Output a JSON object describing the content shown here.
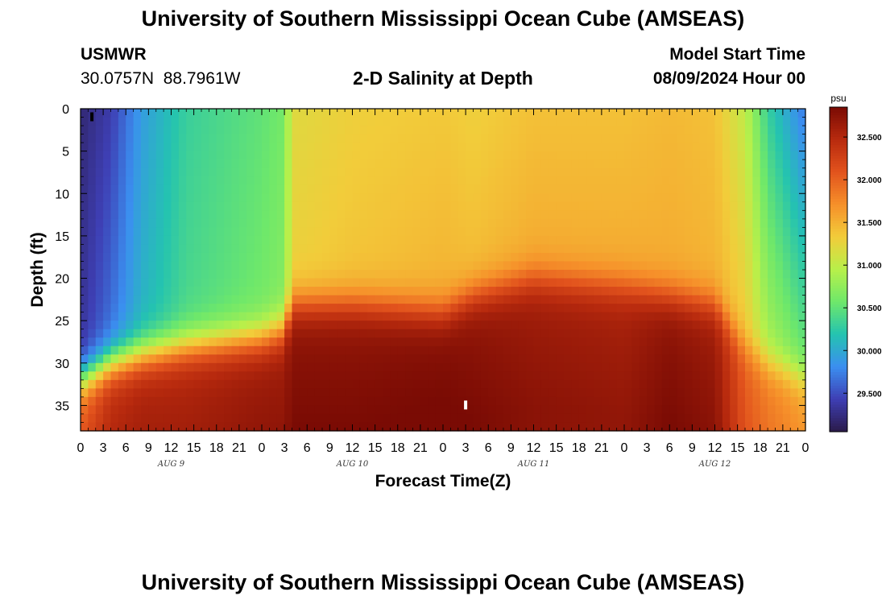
{
  "header": {
    "title": "University of Southern Mississippi Ocean Cube (AMSEAS)",
    "station_name": "USMWR",
    "station_coords": "30.0757N  88.7961W",
    "plot_title": "2-D Salinity at Depth",
    "model_start_label": "Model Start Time",
    "model_start_value": "08/09/2024 Hour 00"
  },
  "footer": {
    "title": "University of Southern Mississippi Ocean Cube (AMSEAS)"
  },
  "chart_data": {
    "type": "heatmap",
    "title": "2-D Salinity at Depth",
    "xlabel": "Forecast Time(Z)",
    "ylabel": "Depth (ft)",
    "x_range_hours": [
      0,
      96
    ],
    "x_tick_step_hours": 3,
    "x_tick_labels": [
      "0",
      "3",
      "6",
      "9",
      "12",
      "15",
      "18",
      "21",
      "0",
      "3",
      "6",
      "9",
      "12",
      "15",
      "18",
      "21",
      "0",
      "3",
      "6",
      "9",
      "12",
      "15",
      "18",
      "21",
      "0",
      "3",
      "6",
      "9",
      "12",
      "15",
      "18",
      "21",
      "0"
    ],
    "date_labels": [
      {
        "label": "AUG 9",
        "hour": 12
      },
      {
        "label": "AUG 10",
        "hour": 36
      },
      {
        "label": "AUG 11",
        "hour": 60
      },
      {
        "label": "AUG 12",
        "hour": 84
      }
    ],
    "ylim": [
      0,
      38
    ],
    "y_ticks": [
      0,
      5,
      10,
      15,
      20,
      25,
      30,
      35
    ],
    "y_tick_labels": [
      "0",
      "5",
      "10",
      "15",
      "20",
      "25",
      "30",
      "35"
    ],
    "colorbar": {
      "units": "psu",
      "range": [
        29.05,
        32.85
      ],
      "ticks": [
        29.5,
        30.0,
        30.5,
        31.0,
        31.5,
        32.0,
        32.5
      ],
      "tick_labels": [
        "29.500",
        "30.000",
        "30.500",
        "31.000",
        "31.500",
        "32.000",
        "32.500"
      ]
    },
    "markers": [
      {
        "hour": 1.5,
        "depth": 1.0,
        "color": "#000000"
      },
      {
        "hour": 51.0,
        "depth": 35.0,
        "color": "#ffffff"
      }
    ],
    "salinity_profiles": [
      {
        "hour": 0,
        "surface": 29.2,
        "surface_bottom": 29.35,
        "halocline_depth": 32,
        "deep": 32.0
      },
      {
        "hour": 4,
        "surface": 29.4,
        "surface_bottom": 29.7,
        "halocline_depth": 30,
        "deep": 32.4
      },
      {
        "hour": 8,
        "surface": 29.9,
        "surface_bottom": 30.1,
        "halocline_depth": 29,
        "deep": 32.5
      },
      {
        "hour": 14,
        "surface": 30.3,
        "surface_bottom": 30.4,
        "halocline_depth": 28,
        "deep": 32.5
      },
      {
        "hour": 24,
        "surface": 30.5,
        "surface_bottom": 30.6,
        "halocline_depth": 27,
        "deep": 32.6
      },
      {
        "hour": 27,
        "surface": 30.6,
        "surface_bottom": 30.7,
        "halocline_depth": 26,
        "deep": 32.6
      },
      {
        "hour": 28,
        "surface": 31.2,
        "surface_bottom": 31.3,
        "halocline_depth": 23,
        "deep": 32.7
      },
      {
        "hour": 36,
        "surface": 31.3,
        "surface_bottom": 31.4,
        "halocline_depth": 23,
        "deep": 32.7
      },
      {
        "hour": 48,
        "surface": 31.35,
        "surface_bottom": 31.5,
        "halocline_depth": 24,
        "deep": 32.75
      },
      {
        "hour": 52,
        "surface": 31.3,
        "surface_bottom": 31.45,
        "halocline_depth": 22,
        "deep": 32.7
      },
      {
        "hour": 60,
        "surface": 31.4,
        "surface_bottom": 31.55,
        "halocline_depth": 20,
        "deep": 32.6
      },
      {
        "hour": 72,
        "surface": 31.4,
        "surface_bottom": 31.55,
        "halocline_depth": 21,
        "deep": 32.55
      },
      {
        "hour": 78,
        "surface": 31.45,
        "surface_bottom": 31.55,
        "halocline_depth": 22,
        "deep": 32.7
      },
      {
        "hour": 84,
        "surface": 31.4,
        "surface_bottom": 31.5,
        "halocline_depth": 23,
        "deep": 32.6
      },
      {
        "hour": 88,
        "surface": 31.0,
        "surface_bottom": 31.35,
        "halocline_depth": 28,
        "deep": 32.0
      },
      {
        "hour": 91,
        "surface": 30.3,
        "surface_bottom": 30.9,
        "halocline_depth": 30,
        "deep": 31.8
      },
      {
        "hour": 96,
        "surface": 29.7,
        "surface_bottom": 30.6,
        "halocline_depth": 32,
        "deep": 31.6
      }
    ]
  },
  "colors": {
    "colormap": [
      "#2b1a4a",
      "#3e3fb4",
      "#3b8ff0",
      "#24c3b0",
      "#6fe86a",
      "#b8f04a",
      "#f2cc3a",
      "#f6902a",
      "#e2531d",
      "#b82a0e",
      "#7a0b04"
    ]
  }
}
